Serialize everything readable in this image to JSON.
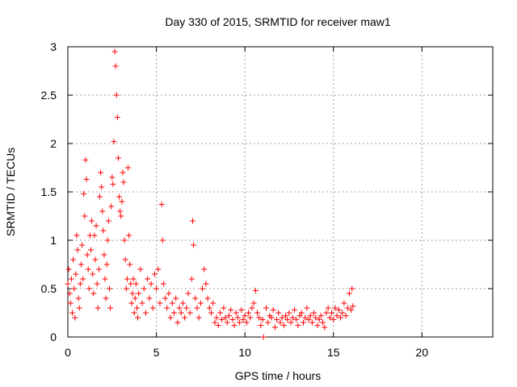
{
  "chart_data": {
    "type": "scatter",
    "title": "Day 330 of 2015, SRMTID for receiver maw1",
    "xlabel": "GPS time / hours",
    "ylabel": "SRMTID / TECUs",
    "xlim": [
      0,
      24
    ],
    "ylim": [
      0,
      3
    ],
    "xticks": [
      0,
      5,
      10,
      15,
      20
    ],
    "yticks": [
      0,
      0.5,
      1,
      1.5,
      2,
      2.5,
      3
    ],
    "xtick_labels": [
      "0",
      "5",
      "10",
      "15",
      "20"
    ],
    "ytick_labels": [
      "0",
      "0.5",
      "1",
      "1.5",
      "2",
      "2.5",
      "3"
    ],
    "grid": true,
    "marker": "+",
    "color": "#ff0000",
    "series": [
      {
        "name": "maw1",
        "points": [
          [
            0.0,
            0.55
          ],
          [
            0.05,
            0.7
          ],
          [
            0.1,
            0.45
          ],
          [
            0.15,
            0.35
          ],
          [
            0.2,
            0.6
          ],
          [
            0.25,
            0.25
          ],
          [
            0.3,
            0.8
          ],
          [
            0.35,
            0.5
          ],
          [
            0.4,
            0.2
          ],
          [
            0.45,
            0.65
          ],
          [
            0.5,
            1.05
          ],
          [
            0.55,
            0.9
          ],
          [
            0.6,
            0.4
          ],
          [
            0.65,
            0.3
          ],
          [
            0.7,
            0.55
          ],
          [
            0.75,
            0.75
          ],
          [
            0.8,
            0.95
          ],
          [
            0.85,
            0.6
          ],
          [
            0.9,
            1.48
          ],
          [
            0.95,
            1.25
          ],
          [
            1.0,
            1.83
          ],
          [
            1.05,
            1.63
          ],
          [
            1.1,
            0.85
          ],
          [
            1.15,
            0.7
          ],
          [
            1.2,
            0.5
          ],
          [
            1.25,
            1.05
          ],
          [
            1.3,
            0.9
          ],
          [
            1.35,
            1.2
          ],
          [
            1.4,
            0.65
          ],
          [
            1.45,
            0.45
          ],
          [
            1.5,
            1.05
          ],
          [
            1.55,
            0.8
          ],
          [
            1.6,
            1.15
          ],
          [
            1.65,
            0.55
          ],
          [
            1.7,
            0.3
          ],
          [
            1.75,
            0.7
          ],
          [
            1.8,
            1.45
          ],
          [
            1.85,
            1.7
          ],
          [
            1.9,
            1.55
          ],
          [
            1.95,
            1.3
          ],
          [
            2.0,
            1.1
          ],
          [
            2.05,
            0.85
          ],
          [
            2.1,
            0.6
          ],
          [
            2.15,
            0.4
          ],
          [
            2.2,
            0.75
          ],
          [
            2.25,
            1.0
          ],
          [
            2.3,
            1.2
          ],
          [
            2.35,
            0.5
          ],
          [
            2.4,
            0.3
          ],
          [
            2.45,
            1.35
          ],
          [
            2.5,
            1.65
          ],
          [
            2.55,
            1.58
          ],
          [
            2.6,
            2.02
          ],
          [
            2.65,
            2.95
          ],
          [
            2.7,
            2.8
          ],
          [
            2.75,
            2.5
          ],
          [
            2.8,
            2.27
          ],
          [
            2.85,
            1.85
          ],
          [
            2.9,
            1.45
          ],
          [
            2.95,
            1.3
          ],
          [
            3.0,
            1.25
          ],
          [
            3.05,
            1.4
          ],
          [
            3.1,
            1.7
          ],
          [
            3.15,
            1.6
          ],
          [
            3.2,
            1.0
          ],
          [
            3.25,
            0.8
          ],
          [
            3.3,
            0.5
          ],
          [
            3.35,
            0.6
          ],
          [
            3.4,
            1.75
          ],
          [
            3.45,
            1.05
          ],
          [
            3.5,
            0.75
          ],
          [
            3.55,
            0.55
          ],
          [
            3.6,
            0.35
          ],
          [
            3.65,
            0.45
          ],
          [
            3.7,
            0.6
          ],
          [
            3.75,
            0.25
          ],
          [
            3.8,
            0.4
          ],
          [
            3.85,
            0.55
          ],
          [
            3.9,
            0.3
          ],
          [
            3.95,
            0.2
          ],
          [
            4.0,
            0.45
          ],
          [
            4.1,
            0.7
          ],
          [
            4.2,
            0.35
          ],
          [
            4.3,
            0.5
          ],
          [
            4.4,
            0.25
          ],
          [
            4.5,
            0.6
          ],
          [
            4.6,
            0.4
          ],
          [
            4.7,
            0.55
          ],
          [
            4.8,
            0.3
          ],
          [
            4.9,
            0.65
          ],
          [
            5.0,
            0.5
          ],
          [
            5.1,
            0.7
          ],
          [
            5.2,
            0.35
          ],
          [
            5.3,
            1.37
          ],
          [
            5.35,
            1.0
          ],
          [
            5.4,
            0.55
          ],
          [
            5.5,
            0.4
          ],
          [
            5.6,
            0.3
          ],
          [
            5.7,
            0.45
          ],
          [
            5.8,
            0.2
          ],
          [
            5.9,
            0.35
          ],
          [
            6.0,
            0.25
          ],
          [
            6.1,
            0.4
          ],
          [
            6.2,
            0.15
          ],
          [
            6.3,
            0.3
          ],
          [
            6.4,
            0.25
          ],
          [
            6.5,
            0.35
          ],
          [
            6.6,
            0.2
          ],
          [
            6.7,
            0.3
          ],
          [
            6.8,
            0.45
          ],
          [
            6.9,
            0.25
          ],
          [
            7.0,
            0.6
          ],
          [
            7.05,
            1.2
          ],
          [
            7.1,
            0.95
          ],
          [
            7.2,
            0.4
          ],
          [
            7.3,
            0.3
          ],
          [
            7.4,
            0.2
          ],
          [
            7.5,
            0.35
          ],
          [
            7.6,
            0.5
          ],
          [
            7.7,
            0.7
          ],
          [
            7.8,
            0.55
          ],
          [
            7.9,
            0.4
          ],
          [
            8.0,
            0.3
          ],
          [
            8.1,
            0.25
          ],
          [
            8.2,
            0.35
          ],
          [
            8.3,
            0.15
          ],
          [
            8.4,
            0.2
          ],
          [
            8.5,
            0.12
          ],
          [
            8.6,
            0.25
          ],
          [
            8.7,
            0.18
          ],
          [
            8.8,
            0.3
          ],
          [
            8.9,
            0.2
          ],
          [
            9.0,
            0.15
          ],
          [
            9.1,
            0.22
          ],
          [
            9.2,
            0.28
          ],
          [
            9.3,
            0.18
          ],
          [
            9.4,
            0.12
          ],
          [
            9.5,
            0.25
          ],
          [
            9.6,
            0.2
          ],
          [
            9.7,
            0.15
          ],
          [
            9.8,
            0.28
          ],
          [
            9.9,
            0.18
          ],
          [
            10.0,
            0.22
          ],
          [
            10.1,
            0.15
          ],
          [
            10.2,
            0.25
          ],
          [
            10.3,
            0.2
          ],
          [
            10.4,
            0.3
          ],
          [
            10.5,
            0.35
          ],
          [
            10.6,
            0.48
          ],
          [
            10.7,
            0.25
          ],
          [
            10.8,
            0.2
          ],
          [
            10.9,
            0.12
          ],
          [
            11.0,
            0.18
          ],
          [
            11.05,
            0.0
          ],
          [
            11.2,
            0.3
          ],
          [
            11.3,
            0.15
          ],
          [
            11.4,
            0.22
          ],
          [
            11.5,
            0.2
          ],
          [
            11.6,
            0.28
          ],
          [
            11.7,
            0.1
          ],
          [
            11.8,
            0.18
          ],
          [
            11.9,
            0.25
          ],
          [
            12.0,
            0.15
          ],
          [
            12.1,
            0.2
          ],
          [
            12.2,
            0.12
          ],
          [
            12.3,
            0.22
          ],
          [
            12.4,
            0.18
          ],
          [
            12.5,
            0.25
          ],
          [
            12.6,
            0.15
          ],
          [
            12.7,
            0.2
          ],
          [
            12.8,
            0.28
          ],
          [
            12.9,
            0.18
          ],
          [
            13.0,
            0.12
          ],
          [
            13.1,
            0.22
          ],
          [
            13.2,
            0.25
          ],
          [
            13.3,
            0.15
          ],
          [
            13.4,
            0.2
          ],
          [
            13.5,
            0.3
          ],
          [
            13.6,
            0.18
          ],
          [
            13.7,
            0.22
          ],
          [
            13.8,
            0.15
          ],
          [
            13.9,
            0.25
          ],
          [
            14.0,
            0.2
          ],
          [
            14.1,
            0.12
          ],
          [
            14.2,
            0.18
          ],
          [
            14.3,
            0.22
          ],
          [
            14.4,
            0.15
          ],
          [
            14.5,
            0.1
          ],
          [
            14.6,
            0.25
          ],
          [
            14.7,
            0.3
          ],
          [
            14.8,
            0.2
          ],
          [
            14.9,
            0.25
          ],
          [
            15.0,
            0.18
          ],
          [
            15.1,
            0.3
          ],
          [
            15.2,
            0.22
          ],
          [
            15.3,
            0.28
          ],
          [
            15.4,
            0.2
          ],
          [
            15.5,
            0.25
          ],
          [
            15.6,
            0.35
          ],
          [
            15.7,
            0.22
          ],
          [
            15.8,
            0.3
          ],
          [
            15.9,
            0.45
          ],
          [
            16.0,
            0.28
          ],
          [
            16.05,
            0.5
          ],
          [
            16.1,
            0.32
          ]
        ]
      }
    ]
  }
}
